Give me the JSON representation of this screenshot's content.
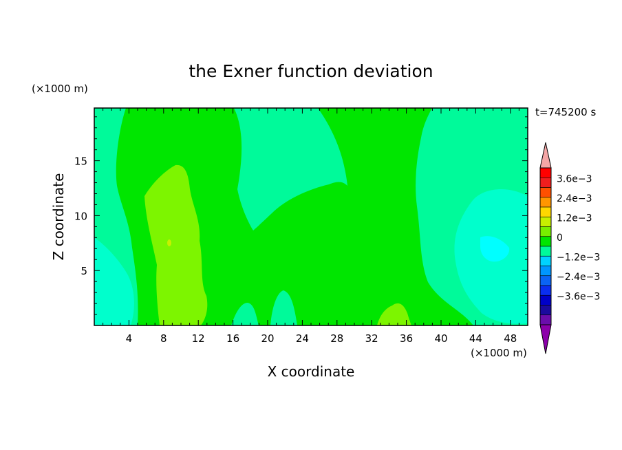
{
  "chart_data": {
    "type": "contour",
    "title": "the Exner function deviation",
    "time_label": "t=745200 s",
    "xlabel": "X coordinate",
    "ylabel": "Z coordinate",
    "x_unit": "(×1000 m)",
    "y_unit": "(×1000 m)",
    "xlim": [
      0,
      50
    ],
    "ylim": [
      0,
      19.8
    ],
    "x_ticks": [
      4,
      8,
      12,
      16,
      20,
      24,
      28,
      32,
      36,
      40,
      44,
      48
    ],
    "y_ticks": [
      5,
      10,
      15
    ],
    "colorbar": {
      "levels": [
        -0.0042,
        -0.0036,
        -0.003,
        -0.0024,
        -0.0018,
        -0.0012,
        -0.0006,
        0,
        0.0006,
        0.0012,
        0.0018,
        0.0024,
        0.003,
        0.0036,
        0.0042
      ],
      "colors": [
        "#6a0dab",
        "#1a0a9e",
        "#0000c8",
        "#0a2ef0",
        "#0a64f5",
        "#0096ff",
        "#00d2ff",
        "#00fa9a",
        "#00e600",
        "#78f000",
        "#c8f000",
        "#ffd700",
        "#ff9600",
        "#ff5000",
        "#f01e1e",
        "#ff0000"
      ],
      "under_color": "#8c00aa",
      "over_color": "#f4a6a6",
      "tick_labels": [
        "3.6e−3",
        "2.4e−3",
        "1.2e−3",
        "0",
        "−1.2e−3",
        "−2.4e−3",
        "−3.6e−3"
      ]
    }
  }
}
